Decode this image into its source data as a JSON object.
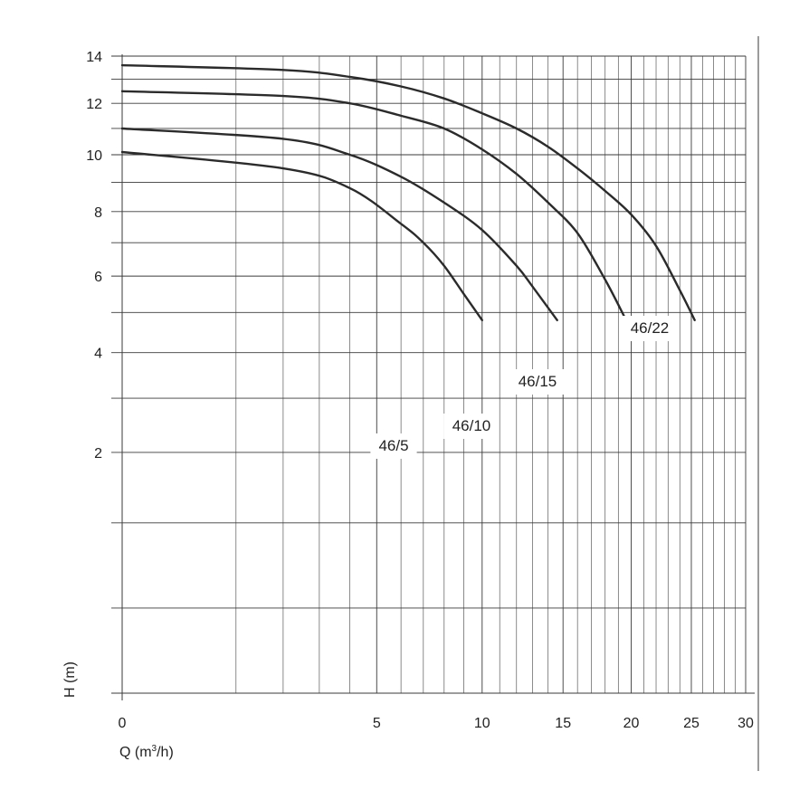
{
  "chart_data": {
    "type": "line",
    "xlabel": {
      "prefix": "Q (m",
      "sup": "3",
      "suffix": "/h)"
    },
    "ylabel": "H (m)",
    "x_scale": "sqrt",
    "y_scale": "sqrt",
    "xlim": [
      0,
      30
    ],
    "ylim": [
      0,
      14
    ],
    "x_ticks": [
      0,
      5,
      10,
      15,
      20,
      25,
      30
    ],
    "y_ticks": [
      2,
      4,
      6,
      8,
      10,
      12,
      14
    ],
    "x_grid": [
      1,
      2,
      3,
      4,
      5,
      6,
      7,
      8,
      9,
      10,
      11,
      12,
      13,
      14,
      15,
      16,
      17,
      18,
      19,
      20,
      21,
      22,
      23,
      24,
      25,
      26,
      27,
      28,
      29,
      30
    ],
    "y_grid": [
      0.25,
      1,
      2,
      3,
      4,
      5,
      6,
      7,
      8,
      9,
      10,
      11,
      12,
      13,
      14
    ],
    "grid": true,
    "series": [
      {
        "name": "46/5",
        "x": [
          0,
          2,
          4,
          6,
          7,
          8,
          9,
          10
        ],
        "y": [
          10.1,
          9.5,
          8.8,
          7.6,
          7.0,
          6.3,
          5.5,
          4.8
        ]
      },
      {
        "name": "46/10",
        "x": [
          0,
          2,
          4,
          6,
          8,
          10,
          12,
          13,
          14.6
        ],
        "y": [
          11.0,
          10.6,
          10.0,
          9.2,
          8.3,
          7.4,
          6.3,
          5.7,
          4.8
        ]
      },
      {
        "name": "46/15",
        "x": [
          0,
          2,
          4,
          6,
          8,
          10,
          12,
          14,
          16,
          18,
          19.6
        ],
        "y": [
          12.5,
          12.3,
          12.0,
          11.5,
          11.0,
          10.2,
          9.3,
          8.3,
          7.3,
          5.9,
          4.8
        ]
      },
      {
        "name": "46/22",
        "x": [
          0,
          2,
          4,
          6,
          8,
          10,
          12,
          14,
          16,
          18,
          20,
          22,
          24,
          25.3
        ],
        "y": [
          13.6,
          13.4,
          13.1,
          12.7,
          12.2,
          11.6,
          11.0,
          10.3,
          9.5,
          8.7,
          7.9,
          6.9,
          5.6,
          4.8
        ]
      }
    ]
  }
}
